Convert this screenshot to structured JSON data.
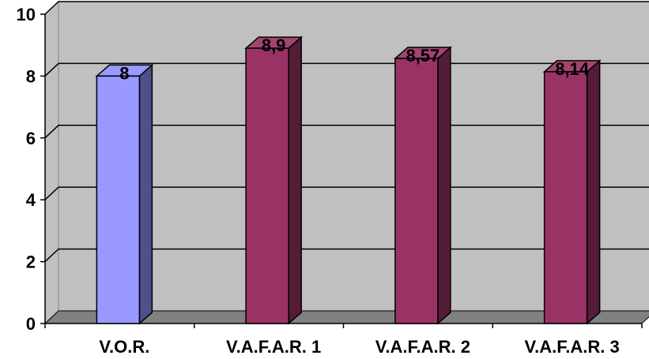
{
  "chart_data": {
    "type": "bar",
    "three_d": true,
    "categories": [
      "V.O.R.",
      "V.A.F.A.R. 1",
      "V.A.F.A.R. 2",
      "V.A.F.A.R. 3"
    ],
    "values": [
      8,
      8.9,
      8.57,
      8.14
    ],
    "data_labels": [
      "8",
      "8,9",
      "8,57",
      "8,14"
    ],
    "y_ticks": [
      "0",
      "2",
      "4",
      "6",
      "8",
      "10"
    ],
    "ylim": [
      0,
      10
    ],
    "grid": true,
    "legend": "none",
    "colors": {
      "plot_back": "#c0c0c0",
      "floor": "#808080",
      "bar_first_front": "#9999ff",
      "bar_first_side": "#4f4f8c",
      "bar_other_front": "#993366",
      "bar_other_side": "#541c38",
      "bar_other_top": "#a14570"
    }
  }
}
